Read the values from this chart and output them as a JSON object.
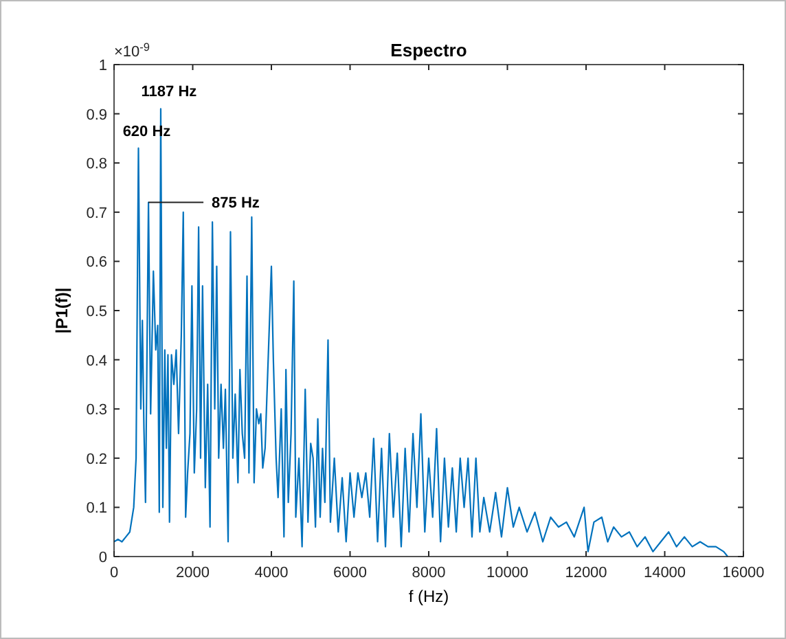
{
  "chart_data": {
    "type": "line",
    "title": "Espectro",
    "xlabel": "f (Hz)",
    "ylabel": "|P1(f)|",
    "xlim": [
      0,
      16000
    ],
    "xticks": [
      0,
      2000,
      4000,
      6000,
      8000,
      10000,
      12000,
      14000,
      16000
    ],
    "ylim": [
      0,
      1
    ],
    "yticks": [
      0,
      0.1,
      0.2,
      0.3,
      0.4,
      0.5,
      0.6,
      0.7,
      0.8,
      0.9,
      1
    ],
    "marker": "none",
    "line_style": "solid",
    "annotations": [
      "×10$^{-9}$",
      {
        "text": "1187 Hz",
        "x": 1187,
        "y": 0.91
      },
      {
        "text": "620 Hz",
        "x": 620,
        "y": 0.83
      },
      {
        "text": "875 Hz",
        "x": 875,
        "y": 0.72
      }
    ],
    "series": [
      {
        "color": "#0072bd",
        "x": [
          0,
          100,
          200,
          300,
          400,
          500,
          560,
          620,
          680,
          720,
          760,
          800,
          875,
          930,
          1000,
          1060,
          1110,
          1150,
          1187,
          1240,
          1290,
          1330,
          1370,
          1410,
          1460,
          1520,
          1580,
          1640,
          1710,
          1760,
          1820,
          1870,
          1930,
          1980,
          2040,
          2100,
          2150,
          2200,
          2250,
          2320,
          2380,
          2440,
          2500,
          2560,
          2610,
          2660,
          2720,
          2780,
          2830,
          2900,
          2960,
          3020,
          3080,
          3150,
          3200,
          3260,
          3320,
          3380,
          3430,
          3500,
          3560,
          3620,
          3680,
          3730,
          3780,
          3840,
          4000,
          4050,
          4120,
          4170,
          4250,
          4320,
          4370,
          4430,
          4500,
          4570,
          4620,
          4700,
          4780,
          4860,
          4930,
          5000,
          5060,
          5120,
          5180,
          5240,
          5300,
          5360,
          5440,
          5500,
          5600,
          5700,
          5800,
          5900,
          6000,
          6100,
          6200,
          6300,
          6400,
          6500,
          6600,
          6700,
          6800,
          6900,
          7000,
          7100,
          7200,
          7300,
          7400,
          7500,
          7600,
          7700,
          7800,
          7900,
          8000,
          8100,
          8200,
          8300,
          8400,
          8500,
          8600,
          8700,
          8800,
          8900,
          9000,
          9100,
          9200,
          9300,
          9400,
          9550,
          9700,
          9850,
          10000,
          10150,
          10300,
          10500,
          10700,
          10900,
          11100,
          11300,
          11500,
          11700,
          11950,
          12050,
          12200,
          12400,
          12550,
          12700,
          12900,
          13100,
          13300,
          13500,
          13700,
          13900,
          14100,
          14300,
          14500,
          14700,
          14900,
          15100,
          15300,
          15500,
          15600
        ],
        "values": [
          0.03,
          0.035,
          0.03,
          0.04,
          0.05,
          0.1,
          0.2,
          0.83,
          0.3,
          0.48,
          0.26,
          0.11,
          0.72,
          0.29,
          0.58,
          0.42,
          0.47,
          0.09,
          0.91,
          0.1,
          0.42,
          0.22,
          0.41,
          0.07,
          0.41,
          0.35,
          0.42,
          0.25,
          0.45,
          0.7,
          0.08,
          0.17,
          0.25,
          0.55,
          0.17,
          0.3,
          0.67,
          0.2,
          0.55,
          0.14,
          0.35,
          0.06,
          0.68,
          0.3,
          0.59,
          0.2,
          0.35,
          0.22,
          0.34,
          0.03,
          0.66,
          0.2,
          0.33,
          0.15,
          0.38,
          0.25,
          0.2,
          0.57,
          0.17,
          0.69,
          0.15,
          0.3,
          0.27,
          0.29,
          0.18,
          0.22,
          0.59,
          0.4,
          0.2,
          0.12,
          0.3,
          0.04,
          0.38,
          0.11,
          0.25,
          0.56,
          0.08,
          0.2,
          0.02,
          0.34,
          0.07,
          0.23,
          0.2,
          0.06,
          0.28,
          0.08,
          0.22,
          0.11,
          0.44,
          0.07,
          0.2,
          0.05,
          0.16,
          0.03,
          0.17,
          0.08,
          0.17,
          0.12,
          0.17,
          0.08,
          0.24,
          0.03,
          0.22,
          0.02,
          0.25,
          0.08,
          0.21,
          0.02,
          0.22,
          0.05,
          0.25,
          0.1,
          0.29,
          0.05,
          0.2,
          0.08,
          0.26,
          0.03,
          0.2,
          0.06,
          0.18,
          0.05,
          0.2,
          0.1,
          0.2,
          0.04,
          0.2,
          0.05,
          0.12,
          0.05,
          0.13,
          0.04,
          0.14,
          0.06,
          0.1,
          0.05,
          0.09,
          0.03,
          0.08,
          0.06,
          0.07,
          0.04,
          0.1,
          0.01,
          0.07,
          0.08,
          0.03,
          0.06,
          0.04,
          0.05,
          0.02,
          0.04,
          0.01,
          0.03,
          0.05,
          0.02,
          0.04,
          0.02,
          0.03,
          0.02,
          0.02,
          0.01,
          0
        ]
      }
    ]
  }
}
